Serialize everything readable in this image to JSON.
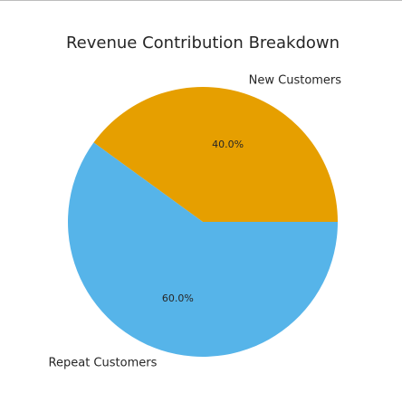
{
  "chart_data": {
    "type": "pie",
    "title": "Revenue Contribution Breakdown",
    "slices": [
      {
        "label": "New Customers",
        "value": 40.0,
        "pct_label": "40.0%",
        "color": "#E69F00"
      },
      {
        "label": "Repeat Customers",
        "value": 60.0,
        "pct_label": "60.0%",
        "color": "#56B4E9"
      }
    ],
    "start_angle_deg": 0,
    "direction": "counterclockwise",
    "legend": "none"
  }
}
